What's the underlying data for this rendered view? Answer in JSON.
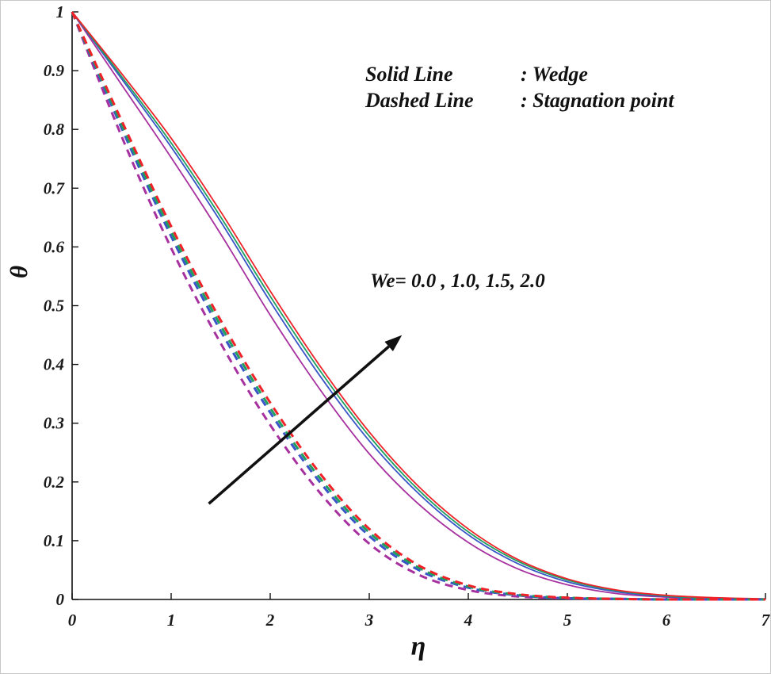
{
  "figure": {
    "legend": {
      "solid_label": "Solid Line",
      "solid_value": ": Wedge",
      "dashed_label": "Dashed Line",
      "dashed_value": ": Stagnation point"
    },
    "we_annotation": "We= 0.0 , 1.0, 1.5, 2.0",
    "xlabel": "η",
    "ylabel": "θ"
  },
  "chart_data": {
    "type": "line",
    "title": "",
    "xlabel": "η",
    "ylabel": "θ",
    "xlim": [
      0,
      7
    ],
    "ylim": [
      0,
      1
    ],
    "xticks": [
      0,
      1,
      2,
      3,
      4,
      5,
      6,
      7
    ],
    "xtick_labels": [
      "0",
      "1",
      "2",
      "3",
      "4",
      "5",
      "6",
      "7"
    ],
    "yticks": [
      0,
      0.1,
      0.2,
      0.3,
      0.4,
      0.5,
      0.6,
      0.7,
      0.8,
      0.9,
      1
    ],
    "ytick_labels": [
      "0",
      "0.1",
      "0.2",
      "0.3",
      "0.4",
      "0.5",
      "0.6",
      "0.7",
      "0.8",
      "0.9",
      "1"
    ],
    "grid": false,
    "legend_position": "top-center-annotation",
    "annotations": [
      "Solid Line : Wedge",
      "Dashed Line : Stagnation point",
      "We= 0.0 , 1.0, 1.5, 2.0"
    ],
    "arrow": {
      "from": [
        1.38,
        0.163
      ],
      "to": [
        3.33,
        0.45
      ]
    },
    "styles": {
      "solid_width": 1.8,
      "dashed_width": 3,
      "dash_pattern": "10 7",
      "axis_color": "#111111"
    },
    "x": [
      0,
      0.5,
      1,
      1.5,
      2,
      2.5,
      3,
      3.5,
      4,
      4.5,
      5,
      5.5,
      6,
      6.5,
      7
    ],
    "series": [
      {
        "name": "Wedge We=0.0",
        "group": "wedge",
        "style": "solid",
        "we": 0.0,
        "color": "#a7309f",
        "values": [
          1.0,
          0.876,
          0.752,
          0.622,
          0.484,
          0.358,
          0.248,
          0.162,
          0.097,
          0.052,
          0.025,
          0.01,
          0.004,
          0.001,
          0.0
        ]
      },
      {
        "name": "Wedge We=1.0",
        "group": "wedge",
        "style": "solid",
        "we": 1.0,
        "color": "#3a55c8",
        "values": [
          1.0,
          0.886,
          0.77,
          0.643,
          0.507,
          0.381,
          0.27,
          0.18,
          0.11,
          0.061,
          0.03,
          0.013,
          0.005,
          0.002,
          0.001
        ]
      },
      {
        "name": "Wedge We=1.5",
        "group": "wedge",
        "style": "solid",
        "we": 1.5,
        "color": "#1f9e5f",
        "values": [
          1.0,
          0.89,
          0.777,
          0.651,
          0.516,
          0.39,
          0.278,
          0.186,
          0.115,
          0.065,
          0.033,
          0.015,
          0.006,
          0.002,
          0.001
        ]
      },
      {
        "name": "Wedge We=2.0",
        "group": "wedge",
        "style": "solid",
        "we": 2.0,
        "color": "#ee2228",
        "values": [
          1.0,
          0.895,
          0.785,
          0.66,
          0.525,
          0.398,
          0.285,
          0.192,
          0.12,
          0.068,
          0.035,
          0.016,
          0.007,
          0.003,
          0.001
        ]
      },
      {
        "name": "Stagnation point We=0.0",
        "group": "stagnation",
        "style": "dashed",
        "we": 0.0,
        "color": "#a7309f",
        "values": [
          1.0,
          0.788,
          0.598,
          0.436,
          0.297,
          0.182,
          0.095,
          0.042,
          0.016,
          0.005,
          0.002,
          0.001,
          0.0,
          0.0,
          0.0
        ]
      },
      {
        "name": "Stagnation point We=1.0",
        "group": "stagnation",
        "style": "dashed",
        "we": 1.0,
        "color": "#3a55c8",
        "values": [
          1.0,
          0.802,
          0.618,
          0.457,
          0.318,
          0.2,
          0.108,
          0.05,
          0.02,
          0.007,
          0.002,
          0.001,
          0.0,
          0.0,
          0.0
        ]
      },
      {
        "name": "Stagnation point We=1.5",
        "group": "stagnation",
        "style": "dashed",
        "we": 1.5,
        "color": "#1f9e5f",
        "values": [
          1.0,
          0.808,
          0.626,
          0.466,
          0.326,
          0.207,
          0.114,
          0.054,
          0.022,
          0.008,
          0.003,
          0.001,
          0.0,
          0.0,
          0.0
        ]
      },
      {
        "name": "Stagnation point We=2.0",
        "group": "stagnation",
        "style": "dashed",
        "we": 2.0,
        "color": "#ee2228",
        "values": [
          1.0,
          0.815,
          0.635,
          0.475,
          0.335,
          0.215,
          0.12,
          0.058,
          0.024,
          0.009,
          0.003,
          0.001,
          0.0,
          0.0,
          0.0
        ]
      }
    ]
  }
}
